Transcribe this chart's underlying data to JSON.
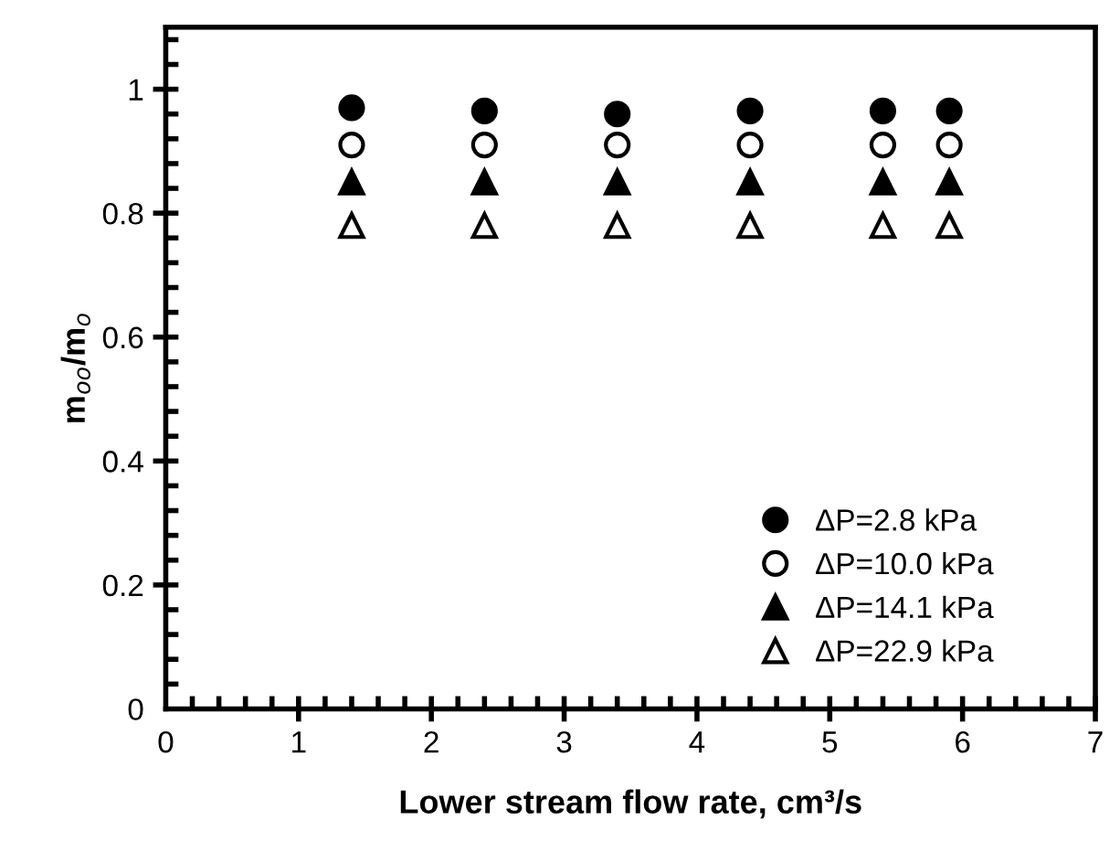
{
  "chart_data": {
    "type": "scatter",
    "xlabel": "Lower stream flow rate, cm³/s",
    "ylabel": "m$_{oo}$/m$_{o}$",
    "xlim": [
      0,
      7
    ],
    "ylim": [
      0,
      1.1
    ],
    "xticks": [
      0,
      1,
      2,
      3,
      4,
      5,
      6,
      7
    ],
    "yticks": [
      0,
      0.2,
      0.4,
      0.6,
      0.8,
      1
    ],
    "x": [
      1.4,
      2.4,
      3.4,
      4.4,
      5.4,
      5.9
    ],
    "legend": "bottom right",
    "grid": false,
    "series": [
      {
        "name": "ΔP=2.8 kPa",
        "color": "#000000",
        "marker": "circle",
        "values": [
          0.97,
          0.965,
          0.96,
          0.965,
          0.965,
          0.965
        ]
      },
      {
        "name": "ΔP=10.0 kPa",
        "color": "#ffffff",
        "marker": "circle",
        "values": [
          0.91,
          0.91,
          0.91,
          0.91,
          0.91,
          0.91
        ]
      },
      {
        "name": "ΔP=14.1 kPa",
        "color": "#000000",
        "marker": "triangle",
        "values": [
          0.85,
          0.85,
          0.85,
          0.85,
          0.85,
          0.85
        ]
      },
      {
        "name": "ΔP=22.9 kPa",
        "color": "#ffffff",
        "marker": "triangle",
        "values": [
          0.78,
          0.78,
          0.78,
          0.78,
          0.78,
          0.78
        ]
      }
    ]
  }
}
